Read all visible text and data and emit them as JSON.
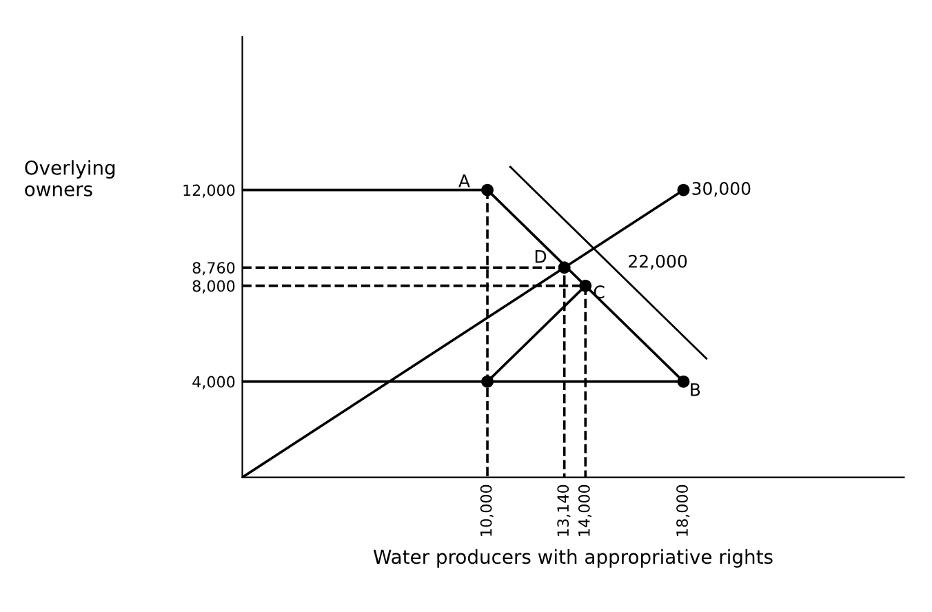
{
  "chart_data": {
    "type": "line",
    "xlabel": "Water producers with appropriative rights",
    "ylabel": "Overlying\nowners",
    "xlim": [
      0,
      27000
    ],
    "ylim": [
      0,
      18400
    ],
    "xticks": [
      {
        "value": 10000,
        "label": "10,000"
      },
      {
        "value": 13140,
        "label": "13,140"
      },
      {
        "value": 14000,
        "label": "14,000"
      },
      {
        "value": 18000,
        "label": "18,000"
      }
    ],
    "yticks": [
      {
        "value": 4000,
        "label": "4,000"
      },
      {
        "value": 8000,
        "label": "8,000"
      },
      {
        "value": 8760,
        "label": "8,760"
      },
      {
        "value": 12000,
        "label": "12,000"
      }
    ],
    "grid": false,
    "series": [
      {
        "color": "#000000",
        "line_style": "solid",
        "x": [
          0,
          18000
        ],
        "values": [
          0,
          12000
        ]
      },
      {
        "color": "#000000",
        "line_style": "solid",
        "x": [
          10000,
          18000
        ],
        "values": [
          12000,
          4000
        ]
      },
      {
        "color": "#000000",
        "line_style": "solid",
        "x": [
          10000,
          14000
        ],
        "values": [
          4000,
          8000
        ]
      },
      {
        "color": "#000000",
        "line_style": "solid",
        "x": [
          0,
          10000
        ],
        "values": [
          12000,
          12000
        ]
      },
      {
        "color": "#000000",
        "line_style": "solid",
        "x": [
          0,
          18000
        ],
        "values": [
          4000,
          4000
        ]
      },
      {
        "color": "#000000",
        "line_style": "dashed",
        "x": [
          0,
          13140,
          13140
        ],
        "values": [
          8760,
          8760,
          0
        ]
      },
      {
        "color": "#000000",
        "line_style": "dashed",
        "x": [
          0,
          14000,
          14000
        ],
        "values": [
          8000,
          8000,
          0
        ]
      },
      {
        "color": "#000000",
        "line_style": "dashed",
        "x": [
          10000,
          10000
        ],
        "values": [
          12000,
          0
        ]
      },
      {
        "type": "scatter",
        "color": "#000000",
        "marker": "circle",
        "x": [
          10000,
          18000,
          14000,
          13140,
          18000,
          10000
        ],
        "values": [
          12000,
          4000,
          8000,
          8760,
          12000,
          4000
        ]
      }
    ],
    "annotations": [
      {
        "text": "A",
        "x": 10000,
        "y": 12000
      },
      {
        "text": "B",
        "x": 18000,
        "y": 4000
      },
      {
        "text": "C",
        "x": 14000,
        "y": 8000
      },
      {
        "text": "D",
        "x": 13140,
        "y": 8760
      },
      {
        "text": "30,000",
        "x": 18000,
        "y": 12000
      },
      "22,000"
    ]
  }
}
